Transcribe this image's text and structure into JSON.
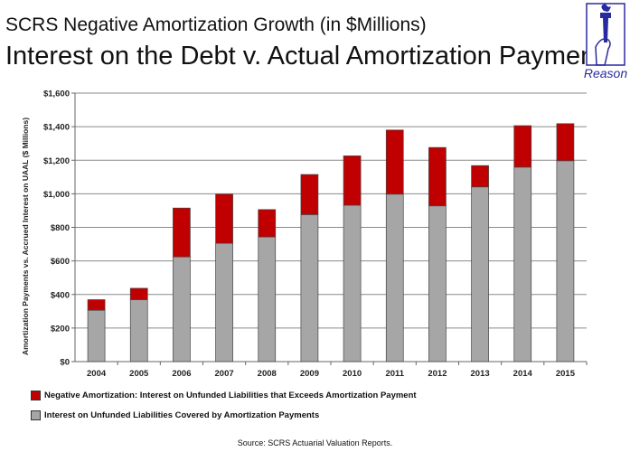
{
  "header": {
    "title_line1": "SCRS Negative Amortization Growth (in $Millions)",
    "title_line2": "Interest on the Debt v. Actual Amortization Payments",
    "logo_text": "Reason"
  },
  "chart_data": {
    "type": "bar",
    "stacked": true,
    "title": "Interest on the Debt v. Actual Amortization Payments",
    "ylabel": "Amortization Payments vs. Accrued Interest on  UAAL ($ Millions)",
    "xlabel": "",
    "ylim": [
      0,
      1600
    ],
    "yticks": [
      0,
      200,
      400,
      600,
      800,
      1000,
      1200,
      1400,
      1600
    ],
    "ytick_labels": [
      "$0",
      "$200",
      "$400",
      "$600",
      "$800",
      "$1,000",
      "$1,200",
      "$1,400",
      "$1,600"
    ],
    "grid": true,
    "legend_placement": "bottom",
    "categories": [
      "2004",
      "2005",
      "2006",
      "2007",
      "2008",
      "2009",
      "2010",
      "2011",
      "2012",
      "2013",
      "2014",
      "2015"
    ],
    "series": [
      {
        "name": "Interest on Unfunded Liabilities Covered by Amortization Payments",
        "color": "#a6a6a6",
        "values": [
          306,
          369,
          624,
          705,
          743,
          876,
          932,
          998,
          928,
          1041,
          1159,
          1197
        ]
      },
      {
        "name": "Negative Amortization: Interest on Unfunded Liabilities that Exceeds Amortization Payment",
        "color": "#c00000",
        "values": [
          63,
          68,
          291,
          293,
          163,
          239,
          294,
          382,
          348,
          127,
          247,
          221
        ]
      }
    ]
  },
  "footer": {
    "source": "Source: SCRS Actuarial Valuation Reports."
  }
}
